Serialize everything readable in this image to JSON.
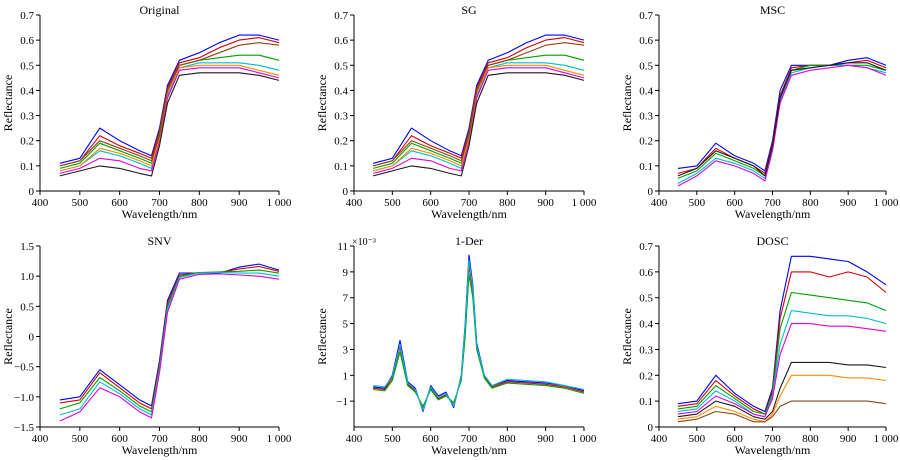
{
  "chart_data": [
    {
      "type": "line",
      "title": "Original",
      "xlabel": "Wavelength/nm",
      "ylabel": "Reflectance",
      "xlim": [
        400,
        1000
      ],
      "ylim": [
        0,
        0.7
      ],
      "xticks": [
        400,
        500,
        600,
        700,
        800,
        900,
        1000
      ],
      "xtick_labels": [
        "400",
        "500",
        "600",
        "700",
        "800",
        "900",
        "1 000"
      ],
      "yticks": [
        0,
        0.1,
        0.2,
        0.3,
        0.4,
        0.5,
        0.6,
        0.7
      ],
      "ytick_labels": [
        "0",
        "0.1",
        "0.2",
        "0.3",
        "0.4",
        "0.5",
        "0.6",
        "0.7"
      ],
      "y_multiplier": "",
      "x": [
        450,
        500,
        550,
        600,
        650,
        680,
        700,
        720,
        750,
        800,
        850,
        900,
        950,
        1000
      ],
      "series": [
        {
          "values": [
            0.11,
            0.13,
            0.25,
            0.2,
            0.16,
            0.14,
            0.25,
            0.42,
            0.52,
            0.55,
            0.59,
            0.62,
            0.62,
            0.6
          ]
        },
        {
          "values": [
            0.1,
            0.12,
            0.22,
            0.18,
            0.15,
            0.13,
            0.24,
            0.41,
            0.51,
            0.53,
            0.57,
            0.6,
            0.61,
            0.59
          ]
        },
        {
          "values": [
            0.09,
            0.11,
            0.19,
            0.16,
            0.13,
            0.11,
            0.23,
            0.4,
            0.5,
            0.52,
            0.53,
            0.54,
            0.54,
            0.52
          ]
        },
        {
          "values": [
            0.08,
            0.1,
            0.16,
            0.14,
            0.11,
            0.09,
            0.22,
            0.38,
            0.49,
            0.51,
            0.51,
            0.51,
            0.5,
            0.48
          ]
        },
        {
          "values": [
            0.07,
            0.09,
            0.13,
            0.12,
            0.09,
            0.08,
            0.2,
            0.37,
            0.48,
            0.49,
            0.49,
            0.49,
            0.47,
            0.45
          ]
        },
        {
          "values": [
            0.06,
            0.08,
            0.1,
            0.09,
            0.07,
            0.06,
            0.18,
            0.35,
            0.46,
            0.47,
            0.47,
            0.47,
            0.46,
            0.44
          ]
        },
        {
          "values": [
            0.08,
            0.1,
            0.17,
            0.15,
            0.12,
            0.1,
            0.21,
            0.39,
            0.49,
            0.5,
            0.5,
            0.5,
            0.48,
            0.46
          ]
        },
        {
          "values": [
            0.1,
            0.12,
            0.2,
            0.17,
            0.14,
            0.12,
            0.22,
            0.4,
            0.5,
            0.52,
            0.55,
            0.58,
            0.59,
            0.58
          ]
        }
      ]
    },
    {
      "type": "line",
      "title": "SG",
      "xlabel": "Wavelength/nm",
      "ylabel": "Reflectance",
      "xlim": [
        400,
        1000
      ],
      "ylim": [
        0,
        0.7
      ],
      "xticks": [
        400,
        500,
        600,
        700,
        800,
        900,
        1000
      ],
      "xtick_labels": [
        "400",
        "500",
        "600",
        "700",
        "800",
        "900",
        "1 000"
      ],
      "yticks": [
        0,
        0.1,
        0.2,
        0.3,
        0.4,
        0.5,
        0.6,
        0.7
      ],
      "ytick_labels": [
        "0",
        "0.1",
        "0.2",
        "0.3",
        "0.4",
        "0.5",
        "0.6",
        "0.7"
      ],
      "y_multiplier": "",
      "x": [
        450,
        500,
        550,
        600,
        650,
        680,
        700,
        720,
        750,
        800,
        850,
        900,
        950,
        1000
      ],
      "series": [
        {
          "values": [
            0.11,
            0.13,
            0.25,
            0.2,
            0.16,
            0.14,
            0.25,
            0.42,
            0.52,
            0.55,
            0.59,
            0.62,
            0.62,
            0.6
          ]
        },
        {
          "values": [
            0.1,
            0.12,
            0.22,
            0.18,
            0.15,
            0.13,
            0.24,
            0.41,
            0.51,
            0.53,
            0.57,
            0.6,
            0.61,
            0.59
          ]
        },
        {
          "values": [
            0.09,
            0.11,
            0.19,
            0.16,
            0.13,
            0.11,
            0.23,
            0.4,
            0.5,
            0.52,
            0.53,
            0.54,
            0.54,
            0.52
          ]
        },
        {
          "values": [
            0.08,
            0.1,
            0.16,
            0.14,
            0.11,
            0.09,
            0.22,
            0.38,
            0.49,
            0.51,
            0.51,
            0.51,
            0.5,
            0.48
          ]
        },
        {
          "values": [
            0.07,
            0.09,
            0.13,
            0.12,
            0.09,
            0.08,
            0.2,
            0.37,
            0.48,
            0.49,
            0.49,
            0.49,
            0.47,
            0.45
          ]
        },
        {
          "values": [
            0.06,
            0.08,
            0.1,
            0.09,
            0.07,
            0.06,
            0.18,
            0.35,
            0.46,
            0.47,
            0.47,
            0.47,
            0.46,
            0.44
          ]
        },
        {
          "values": [
            0.08,
            0.1,
            0.17,
            0.15,
            0.12,
            0.1,
            0.21,
            0.39,
            0.49,
            0.5,
            0.5,
            0.5,
            0.48,
            0.46
          ]
        },
        {
          "values": [
            0.1,
            0.12,
            0.2,
            0.17,
            0.14,
            0.12,
            0.22,
            0.4,
            0.5,
            0.52,
            0.55,
            0.58,
            0.59,
            0.58
          ]
        }
      ]
    },
    {
      "type": "line",
      "title": "MSC",
      "xlabel": "Wavelength/nm",
      "ylabel": "Reflectance",
      "xlim": [
        400,
        1000
      ],
      "ylim": [
        0,
        0.7
      ],
      "xticks": [
        400,
        500,
        600,
        700,
        800,
        900,
        1000
      ],
      "xtick_labels": [
        "400",
        "500",
        "600",
        "700",
        "800",
        "900",
        "1 000"
      ],
      "yticks": [
        0,
        0.1,
        0.2,
        0.3,
        0.4,
        0.5,
        0.6,
        0.7
      ],
      "ytick_labels": [
        "0",
        "0.1",
        "0.2",
        "0.3",
        "0.4",
        "0.5",
        "0.6",
        "0.7"
      ],
      "y_multiplier": "",
      "x": [
        450,
        500,
        550,
        600,
        650,
        680,
        700,
        720,
        750,
        800,
        850,
        900,
        950,
        1000
      ],
      "series": [
        {
          "values": [
            0.09,
            0.1,
            0.19,
            0.14,
            0.11,
            0.08,
            0.2,
            0.4,
            0.5,
            0.5,
            0.5,
            0.52,
            0.53,
            0.5
          ]
        },
        {
          "values": [
            0.07,
            0.09,
            0.17,
            0.13,
            0.1,
            0.07,
            0.19,
            0.38,
            0.49,
            0.5,
            0.5,
            0.51,
            0.52,
            0.49
          ]
        },
        {
          "values": [
            0.05,
            0.08,
            0.15,
            0.12,
            0.09,
            0.06,
            0.18,
            0.37,
            0.48,
            0.5,
            0.5,
            0.5,
            0.5,
            0.48
          ]
        },
        {
          "values": [
            0.03,
            0.07,
            0.13,
            0.11,
            0.08,
            0.05,
            0.17,
            0.36,
            0.47,
            0.49,
            0.5,
            0.5,
            0.49,
            0.47
          ]
        },
        {
          "values": [
            0.02,
            0.06,
            0.12,
            0.1,
            0.07,
            0.04,
            0.16,
            0.35,
            0.46,
            0.48,
            0.49,
            0.5,
            0.49,
            0.46
          ]
        },
        {
          "values": [
            0.06,
            0.09,
            0.16,
            0.13,
            0.1,
            0.06,
            0.18,
            0.37,
            0.48,
            0.49,
            0.5,
            0.51,
            0.51,
            0.48
          ]
        }
      ]
    },
    {
      "type": "line",
      "title": "SNV",
      "xlabel": "Wavelength/nm",
      "ylabel": "Reflectance",
      "xlim": [
        400,
        1000
      ],
      "ylim": [
        -1.5,
        1.5
      ],
      "xticks": [
        400,
        500,
        600,
        700,
        800,
        900,
        1000
      ],
      "xtick_labels": [
        "400",
        "500",
        "600",
        "700",
        "800",
        "900",
        "1 000"
      ],
      "yticks": [
        -1.5,
        -1.0,
        -0.5,
        0,
        0.5,
        1.0,
        1.5
      ],
      "ytick_labels": [
        "−1.5",
        "−1.0",
        "−0.5",
        "0",
        "0.5",
        "1.0",
        "1.5"
      ],
      "y_multiplier": "",
      "x": [
        450,
        500,
        550,
        600,
        650,
        680,
        700,
        720,
        750,
        800,
        850,
        900,
        950,
        1000
      ],
      "series": [
        {
          "values": [
            -1.05,
            -1.0,
            -0.55,
            -0.8,
            -1.05,
            -1.15,
            -0.4,
            0.6,
            1.05,
            1.05,
            1.05,
            1.15,
            1.2,
            1.1
          ]
        },
        {
          "values": [
            -1.1,
            -1.05,
            -0.6,
            -0.85,
            -1.1,
            -1.2,
            -0.45,
            0.55,
            1.02,
            1.06,
            1.06,
            1.12,
            1.16,
            1.08
          ]
        },
        {
          "values": [
            -1.2,
            -1.1,
            -0.68,
            -0.9,
            -1.15,
            -1.25,
            -0.5,
            0.5,
            1.0,
            1.06,
            1.07,
            1.08,
            1.1,
            1.05
          ]
        },
        {
          "values": [
            -1.3,
            -1.2,
            -0.75,
            -0.95,
            -1.2,
            -1.3,
            -0.55,
            0.45,
            0.98,
            1.05,
            1.06,
            1.05,
            1.05,
            1.0
          ]
        },
        {
          "values": [
            -1.4,
            -1.25,
            -0.85,
            -1.0,
            -1.25,
            -1.35,
            -0.6,
            0.4,
            0.95,
            1.03,
            1.04,
            1.02,
            1.0,
            0.95
          ]
        }
      ]
    },
    {
      "type": "line",
      "title": "1-Der",
      "xlabel": "Wavelength/nm",
      "ylabel": "Reflectance",
      "xlim": [
        400,
        1000
      ],
      "ylim": [
        -3,
        11
      ],
      "xticks": [
        400,
        500,
        600,
        700,
        800,
        900,
        1000
      ],
      "xtick_labels": [
        "400",
        "500",
        "600",
        "700",
        "800",
        "900",
        "1 000"
      ],
      "yticks": [
        -1,
        1,
        3,
        5,
        7,
        9,
        11
      ],
      "ytick_labels": [
        "−1",
        "1",
        "3",
        "5",
        "7",
        "9",
        "11"
      ],
      "y_multiplier": "×10⁻³",
      "x": [
        450,
        480,
        500,
        520,
        540,
        560,
        580,
        600,
        620,
        640,
        660,
        680,
        690,
        700,
        710,
        720,
        740,
        760,
        800,
        850,
        900,
        950,
        1000
      ],
      "series": [
        {
          "values": [
            0.1,
            0.0,
            1.0,
            3.7,
            0.5,
            0.0,
            -1.8,
            0.2,
            -0.6,
            -0.3,
            -1.5,
            1.0,
            5.0,
            10.3,
            8.0,
            3.5,
            1.0,
            0.2,
            0.6,
            0.5,
            0.4,
            0.2,
            -0.2
          ]
        },
        {
          "values": [
            0.0,
            -0.1,
            0.8,
            3.2,
            0.3,
            -0.2,
            -1.6,
            0.0,
            -0.8,
            -0.5,
            -1.3,
            0.8,
            4.5,
            9.5,
            7.5,
            3.2,
            0.9,
            0.1,
            0.5,
            0.4,
            0.3,
            0.1,
            -0.3
          ]
        },
        {
          "values": [
            -0.1,
            -0.2,
            0.6,
            2.8,
            0.2,
            -0.3,
            -1.4,
            -0.1,
            -0.9,
            -0.6,
            -1.1,
            0.6,
            4.0,
            8.8,
            7.0,
            3.0,
            0.8,
            0.0,
            0.4,
            0.3,
            0.2,
            0.0,
            -0.4
          ]
        },
        {
          "values": [
            0.2,
            0.1,
            0.9,
            3.4,
            0.4,
            -0.1,
            -1.7,
            0.1,
            -0.7,
            -0.4,
            -1.4,
            0.9,
            4.8,
            9.9,
            7.8,
            3.3,
            1.0,
            0.2,
            0.7,
            0.6,
            0.5,
            0.2,
            -0.1
          ]
        }
      ]
    },
    {
      "type": "line",
      "title": "DOSC",
      "xlabel": "Wavelength/nm",
      "ylabel": "Reflectance",
      "xlim": [
        400,
        1000
      ],
      "ylim": [
        0,
        0.7
      ],
      "xticks": [
        400,
        500,
        600,
        700,
        800,
        900,
        1000
      ],
      "xtick_labels": [
        "400",
        "500",
        "600",
        "700",
        "800",
        "900",
        "1 000"
      ],
      "yticks": [
        0,
        0.1,
        0.2,
        0.3,
        0.4,
        0.5,
        0.6,
        0.7
      ],
      "ytick_labels": [
        "0",
        "0.1",
        "0.2",
        "0.3",
        "0.4",
        "0.5",
        "0.6",
        "0.7"
      ],
      "y_multiplier": "",
      "x": [
        450,
        500,
        550,
        600,
        650,
        680,
        700,
        720,
        750,
        800,
        850,
        900,
        950,
        1000
      ],
      "series": [
        {
          "values": [
            0.09,
            0.1,
            0.2,
            0.13,
            0.08,
            0.06,
            0.15,
            0.45,
            0.66,
            0.66,
            0.65,
            0.64,
            0.6,
            0.55
          ]
        },
        {
          "values": [
            0.08,
            0.09,
            0.18,
            0.12,
            0.07,
            0.05,
            0.14,
            0.42,
            0.6,
            0.6,
            0.58,
            0.6,
            0.58,
            0.52
          ]
        },
        {
          "values": [
            0.07,
            0.08,
            0.16,
            0.11,
            0.06,
            0.05,
            0.13,
            0.38,
            0.52,
            0.51,
            0.5,
            0.49,
            0.48,
            0.45
          ]
        },
        {
          "values": [
            0.06,
            0.07,
            0.14,
            0.1,
            0.05,
            0.04,
            0.12,
            0.32,
            0.45,
            0.44,
            0.43,
            0.43,
            0.42,
            0.4
          ]
        },
        {
          "values": [
            0.05,
            0.06,
            0.12,
            0.09,
            0.05,
            0.04,
            0.11,
            0.28,
            0.4,
            0.4,
            0.39,
            0.39,
            0.38,
            0.37
          ]
        },
        {
          "values": [
            0.04,
            0.05,
            0.1,
            0.08,
            0.04,
            0.03,
            0.06,
            0.15,
            0.25,
            0.25,
            0.25,
            0.24,
            0.24,
            0.23
          ]
        },
        {
          "values": [
            0.03,
            0.04,
            0.08,
            0.06,
            0.03,
            0.02,
            0.05,
            0.12,
            0.2,
            0.2,
            0.2,
            0.19,
            0.19,
            0.18
          ]
        },
        {
          "values": [
            0.02,
            0.03,
            0.06,
            0.05,
            0.02,
            0.02,
            0.04,
            0.08,
            0.1,
            0.1,
            0.1,
            0.1,
            0.1,
            0.09
          ]
        }
      ]
    }
  ]
}
